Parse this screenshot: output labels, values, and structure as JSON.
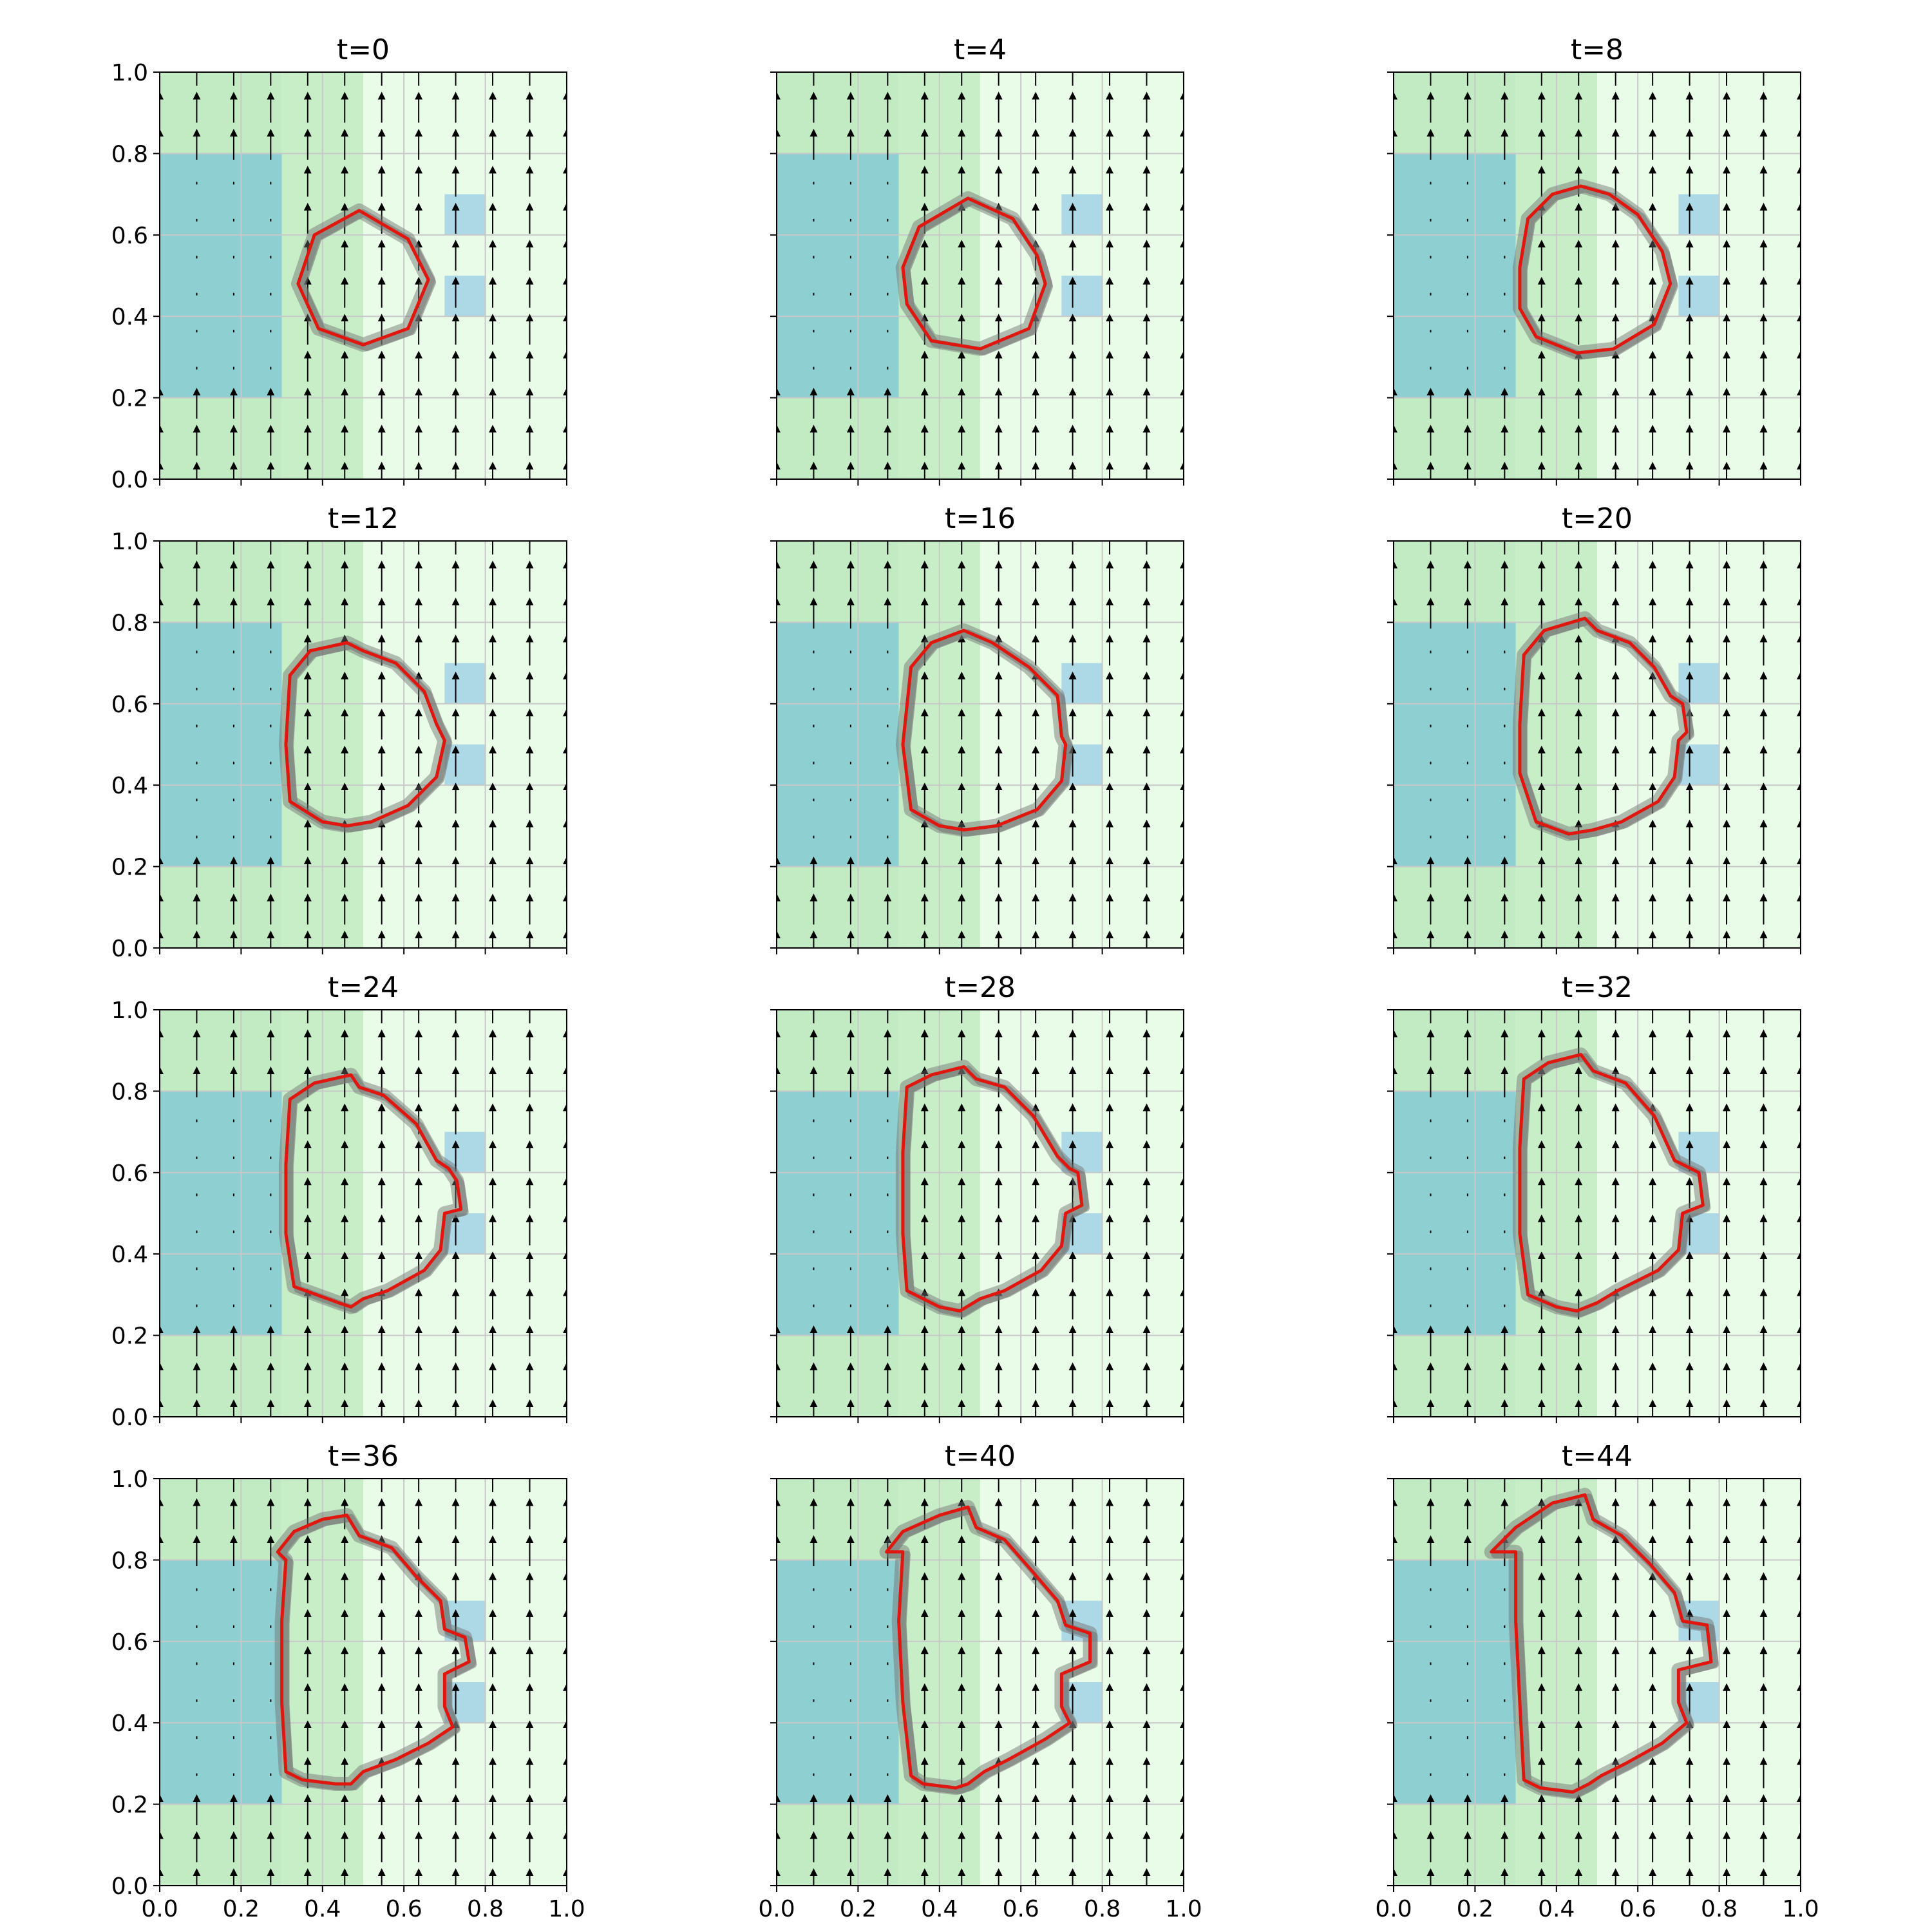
{
  "chart_data": {
    "type": "small-multiples-contour",
    "layout": {
      "rows": 4,
      "cols": 3,
      "sharex": true,
      "sharey": true
    },
    "xlim": [
      0,
      1
    ],
    "ylim": [
      0,
      1
    ],
    "x_ticks": [
      "0.0",
      "0.2",
      "0.4",
      "0.6",
      "0.8",
      "1.0"
    ],
    "y_ticks": [
      "0.0",
      "0.2",
      "0.4",
      "0.6",
      "0.8",
      "1.0"
    ],
    "grid": true,
    "colors": {
      "zone_left": "#c2ebc3",
      "zone_middle": "#c8eec8",
      "zone_right": "#e8fce8",
      "block_large": "#8ecfd1",
      "block_small": "#add8e6",
      "contour_main": "#e0170f",
      "contour_ensemble": "#6f6f6f",
      "arrows": "#000000",
      "gridlines": "#c8c8c8"
    },
    "background_regions": [
      {
        "name": "zone-left",
        "x": [
          0.0,
          0.3
        ],
        "y": [
          0.0,
          1.0
        ],
        "color": "#c2ebc3"
      },
      {
        "name": "zone-middle",
        "x": [
          0.3,
          0.5
        ],
        "y": [
          0.0,
          1.0
        ],
        "color": "#c8eec8"
      },
      {
        "name": "zone-right",
        "x": [
          0.5,
          1.0
        ],
        "y": [
          0.0,
          1.0
        ],
        "color": "#e8fce8"
      },
      {
        "name": "block-large",
        "x": [
          0.0,
          0.3
        ],
        "y": [
          0.2,
          0.8
        ],
        "color": "#8ecfd1"
      },
      {
        "name": "block-small-upper",
        "x": [
          0.7,
          0.8
        ],
        "y": [
          0.6,
          0.7
        ],
        "color": "#add8e6"
      },
      {
        "name": "block-small-lower",
        "x": [
          0.7,
          0.8
        ],
        "y": [
          0.4,
          0.5
        ],
        "color": "#add8e6"
      }
    ],
    "vector_field": {
      "direction": "up",
      "x_spacing": 0.0909,
      "y_spacing": 0.0909,
      "slow_region": {
        "x": [
          0.0,
          0.3
        ],
        "y": [
          0.2,
          0.8
        ]
      }
    },
    "panels": [
      {
        "title": "t=0",
        "front": [
          [
            0.49,
            0.66
          ],
          [
            0.61,
            0.59
          ],
          [
            0.66,
            0.49
          ],
          [
            0.61,
            0.37
          ],
          [
            0.5,
            0.33
          ],
          [
            0.39,
            0.37
          ],
          [
            0.34,
            0.48
          ],
          [
            0.38,
            0.6
          ]
        ]
      },
      {
        "title": "t=4",
        "front": [
          [
            0.47,
            0.69
          ],
          [
            0.58,
            0.64
          ],
          [
            0.64,
            0.55
          ],
          [
            0.66,
            0.48
          ],
          [
            0.62,
            0.37
          ],
          [
            0.5,
            0.32
          ],
          [
            0.38,
            0.34
          ],
          [
            0.32,
            0.43
          ],
          [
            0.31,
            0.52
          ],
          [
            0.35,
            0.62
          ]
        ]
      },
      {
        "title": "t=8",
        "front": [
          [
            0.46,
            0.72
          ],
          [
            0.53,
            0.7
          ],
          [
            0.6,
            0.65
          ],
          [
            0.66,
            0.56
          ],
          [
            0.68,
            0.48
          ],
          [
            0.64,
            0.38
          ],
          [
            0.54,
            0.32
          ],
          [
            0.45,
            0.31
          ],
          [
            0.35,
            0.35
          ],
          [
            0.31,
            0.42
          ],
          [
            0.31,
            0.52
          ],
          [
            0.33,
            0.64
          ],
          [
            0.39,
            0.7
          ]
        ]
      },
      {
        "title": "t=12",
        "front": [
          [
            0.46,
            0.75
          ],
          [
            0.5,
            0.73
          ],
          [
            0.58,
            0.7
          ],
          [
            0.65,
            0.63
          ],
          [
            0.68,
            0.55
          ],
          [
            0.7,
            0.51
          ],
          [
            0.68,
            0.42
          ],
          [
            0.61,
            0.35
          ],
          [
            0.52,
            0.31
          ],
          [
            0.46,
            0.3
          ],
          [
            0.4,
            0.31
          ],
          [
            0.32,
            0.36
          ],
          [
            0.31,
            0.5
          ],
          [
            0.32,
            0.67
          ],
          [
            0.37,
            0.73
          ]
        ]
      },
      {
        "title": "t=16",
        "front": [
          [
            0.46,
            0.78
          ],
          [
            0.53,
            0.75
          ],
          [
            0.62,
            0.69
          ],
          [
            0.69,
            0.62
          ],
          [
            0.7,
            0.52
          ],
          [
            0.71,
            0.5
          ],
          [
            0.7,
            0.41
          ],
          [
            0.64,
            0.34
          ],
          [
            0.54,
            0.3
          ],
          [
            0.46,
            0.29
          ],
          [
            0.4,
            0.3
          ],
          [
            0.33,
            0.34
          ],
          [
            0.31,
            0.5
          ],
          [
            0.33,
            0.69
          ],
          [
            0.38,
            0.75
          ]
        ]
      },
      {
        "title": "t=20",
        "front": [
          [
            0.47,
            0.81
          ],
          [
            0.5,
            0.78
          ],
          [
            0.58,
            0.75
          ],
          [
            0.64,
            0.69
          ],
          [
            0.68,
            0.62
          ],
          [
            0.71,
            0.6
          ],
          [
            0.72,
            0.53
          ],
          [
            0.7,
            0.51
          ],
          [
            0.69,
            0.42
          ],
          [
            0.65,
            0.36
          ],
          [
            0.56,
            0.31
          ],
          [
            0.49,
            0.29
          ],
          [
            0.43,
            0.28
          ],
          [
            0.35,
            0.31
          ],
          [
            0.31,
            0.43
          ],
          [
            0.31,
            0.55
          ],
          [
            0.32,
            0.72
          ],
          [
            0.37,
            0.78
          ]
        ]
      },
      {
        "title": "t=24",
        "front": [
          [
            0.47,
            0.84
          ],
          [
            0.49,
            0.81
          ],
          [
            0.55,
            0.79
          ],
          [
            0.63,
            0.72
          ],
          [
            0.68,
            0.63
          ],
          [
            0.71,
            0.61
          ],
          [
            0.73,
            0.58
          ],
          [
            0.74,
            0.51
          ],
          [
            0.7,
            0.5
          ],
          [
            0.69,
            0.41
          ],
          [
            0.65,
            0.36
          ],
          [
            0.56,
            0.31
          ],
          [
            0.5,
            0.29
          ],
          [
            0.47,
            0.27
          ],
          [
            0.44,
            0.28
          ],
          [
            0.33,
            0.32
          ],
          [
            0.31,
            0.45
          ],
          [
            0.31,
            0.62
          ],
          [
            0.32,
            0.78
          ],
          [
            0.38,
            0.82
          ]
        ]
      },
      {
        "title": "t=28",
        "front": [
          [
            0.46,
            0.86
          ],
          [
            0.49,
            0.83
          ],
          [
            0.56,
            0.81
          ],
          [
            0.63,
            0.74
          ],
          [
            0.69,
            0.64
          ],
          [
            0.72,
            0.61
          ],
          [
            0.74,
            0.6
          ],
          [
            0.75,
            0.52
          ],
          [
            0.71,
            0.5
          ],
          [
            0.7,
            0.42
          ],
          [
            0.65,
            0.36
          ],
          [
            0.56,
            0.31
          ],
          [
            0.5,
            0.29
          ],
          [
            0.45,
            0.26
          ],
          [
            0.4,
            0.27
          ],
          [
            0.32,
            0.31
          ],
          [
            0.31,
            0.45
          ],
          [
            0.31,
            0.65
          ],
          [
            0.32,
            0.81
          ],
          [
            0.38,
            0.84
          ]
        ]
      },
      {
        "title": "t=32",
        "front": [
          [
            0.46,
            0.89
          ],
          [
            0.49,
            0.85
          ],
          [
            0.57,
            0.82
          ],
          [
            0.64,
            0.74
          ],
          [
            0.69,
            0.63
          ],
          [
            0.73,
            0.61
          ],
          [
            0.75,
            0.6
          ],
          [
            0.76,
            0.52
          ],
          [
            0.71,
            0.5
          ],
          [
            0.7,
            0.41
          ],
          [
            0.65,
            0.36
          ],
          [
            0.55,
            0.31
          ],
          [
            0.5,
            0.28
          ],
          [
            0.45,
            0.26
          ],
          [
            0.4,
            0.27
          ],
          [
            0.33,
            0.3
          ],
          [
            0.31,
            0.45
          ],
          [
            0.31,
            0.66
          ],
          [
            0.32,
            0.83
          ],
          [
            0.38,
            0.87
          ]
        ]
      },
      {
        "title": "t=36",
        "front": [
          [
            0.46,
            0.91
          ],
          [
            0.49,
            0.86
          ],
          [
            0.57,
            0.83
          ],
          [
            0.63,
            0.76
          ],
          [
            0.69,
            0.7
          ],
          [
            0.7,
            0.63
          ],
          [
            0.75,
            0.61
          ],
          [
            0.76,
            0.55
          ],
          [
            0.7,
            0.52
          ],
          [
            0.7,
            0.44
          ],
          [
            0.72,
            0.39
          ],
          [
            0.66,
            0.35
          ],
          [
            0.58,
            0.31
          ],
          [
            0.5,
            0.28
          ],
          [
            0.47,
            0.25
          ],
          [
            0.43,
            0.25
          ],
          [
            0.35,
            0.26
          ],
          [
            0.31,
            0.28
          ],
          [
            0.3,
            0.45
          ],
          [
            0.3,
            0.65
          ],
          [
            0.31,
            0.8
          ],
          [
            0.29,
            0.82
          ],
          [
            0.33,
            0.87
          ],
          [
            0.4,
            0.9
          ]
        ]
      },
      {
        "title": "t=40",
        "front": [
          [
            0.47,
            0.93
          ],
          [
            0.49,
            0.88
          ],
          [
            0.56,
            0.85
          ],
          [
            0.63,
            0.77
          ],
          [
            0.69,
            0.7
          ],
          [
            0.71,
            0.64
          ],
          [
            0.77,
            0.62
          ],
          [
            0.77,
            0.55
          ],
          [
            0.7,
            0.52
          ],
          [
            0.7,
            0.44
          ],
          [
            0.72,
            0.4
          ],
          [
            0.66,
            0.36
          ],
          [
            0.57,
            0.31
          ],
          [
            0.51,
            0.28
          ],
          [
            0.47,
            0.25
          ],
          [
            0.44,
            0.24
          ],
          [
            0.36,
            0.25
          ],
          [
            0.33,
            0.27
          ],
          [
            0.31,
            0.45
          ],
          [
            0.3,
            0.65
          ],
          [
            0.31,
            0.82
          ],
          [
            0.27,
            0.82
          ],
          [
            0.31,
            0.87
          ],
          [
            0.4,
            0.91
          ]
        ]
      },
      {
        "title": "t=44",
        "front": [
          [
            0.47,
            0.96
          ],
          [
            0.49,
            0.9
          ],
          [
            0.56,
            0.86
          ],
          [
            0.63,
            0.79
          ],
          [
            0.69,
            0.72
          ],
          [
            0.71,
            0.65
          ],
          [
            0.77,
            0.64
          ],
          [
            0.78,
            0.55
          ],
          [
            0.7,
            0.53
          ],
          [
            0.7,
            0.45
          ],
          [
            0.72,
            0.4
          ],
          [
            0.66,
            0.35
          ],
          [
            0.57,
            0.3
          ],
          [
            0.51,
            0.27
          ],
          [
            0.48,
            0.25
          ],
          [
            0.44,
            0.23
          ],
          [
            0.36,
            0.24
          ],
          [
            0.32,
            0.26
          ],
          [
            0.31,
            0.45
          ],
          [
            0.3,
            0.65
          ],
          [
            0.3,
            0.82
          ],
          [
            0.24,
            0.82
          ],
          [
            0.3,
            0.88
          ],
          [
            0.39,
            0.94
          ]
        ]
      }
    ]
  }
}
